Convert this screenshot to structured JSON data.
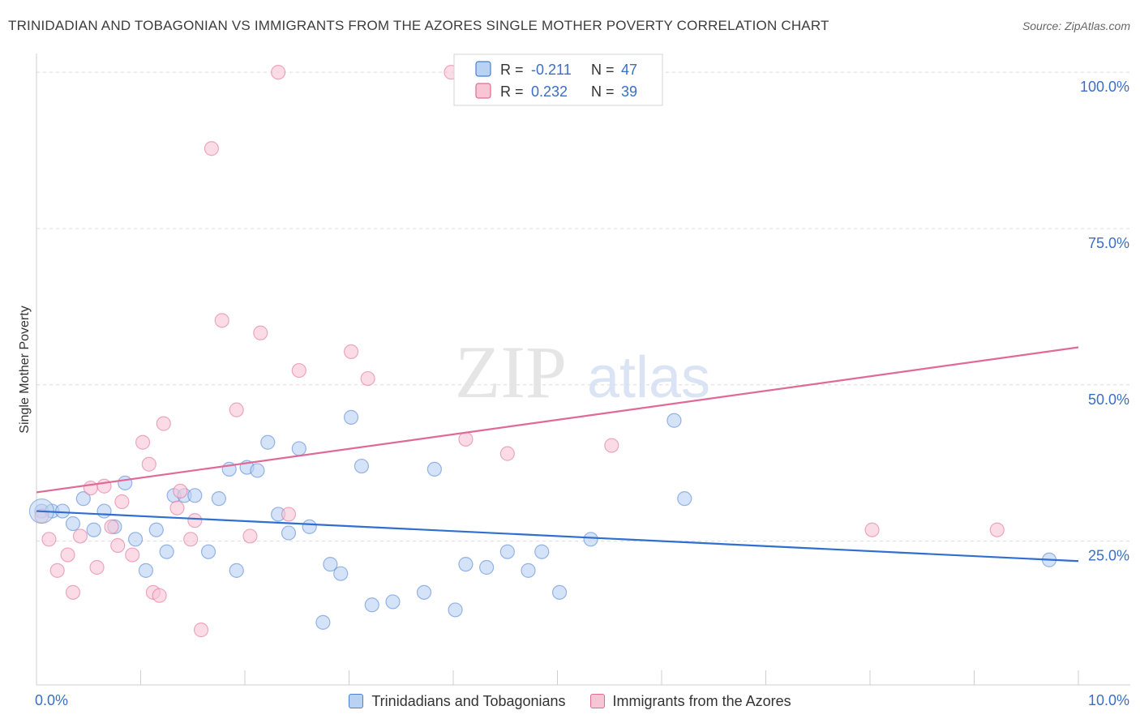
{
  "chart_data": {
    "type": "scatter",
    "title": "TRINIDADIAN AND TOBAGONIAN VS IMMIGRANTS FROM THE AZORES SINGLE MOTHER POVERTY CORRELATION CHART",
    "source": "Source: ZipAtlas.com",
    "ylabel": "Single Mother Poverty",
    "xlabel": "",
    "xlim": [
      0,
      10
    ],
    "ylim": [
      2,
      103
    ],
    "x_tick_labels": [
      {
        "value": 0,
        "label": "0.0%"
      },
      {
        "value": 10,
        "label": "10.0%"
      }
    ],
    "y_tick_labels": [
      {
        "value": 25,
        "label": "25.0%"
      },
      {
        "value": 50,
        "label": "50.0%"
      },
      {
        "value": 75,
        "label": "75.0%"
      },
      {
        "value": 100,
        "label": "100.0%"
      }
    ],
    "grid": true,
    "legend_position": "top-center",
    "watermark": "ZIPatlas",
    "series": [
      {
        "name": "Trinidadians and Tobagonians",
        "color": "#4a7fd1",
        "fill": "#b9d1f3",
        "r_label": "R =",
        "r_value": "-0.211",
        "n_label": "N =",
        "n_value": "47",
        "trend": {
          "x0": 0,
          "y0": 29.8,
          "x1": 10,
          "y1": 21.8
        },
        "points": [
          [
            0.05,
            29.8
          ],
          [
            0.15,
            29.8
          ],
          [
            0.25,
            29.8
          ],
          [
            0.35,
            27.8
          ],
          [
            0.45,
            31.8
          ],
          [
            0.55,
            26.8
          ],
          [
            0.65,
            29.8
          ],
          [
            0.75,
            27.3
          ],
          [
            0.85,
            34.3
          ],
          [
            0.95,
            25.3
          ],
          [
            1.05,
            20.3
          ],
          [
            1.15,
            26.8
          ],
          [
            1.25,
            23.3
          ],
          [
            1.32,
            32.3
          ],
          [
            1.42,
            32.3
          ],
          [
            1.52,
            32.3
          ],
          [
            1.65,
            23.3
          ],
          [
            1.75,
            31.8
          ],
          [
            1.85,
            36.5
          ],
          [
            1.92,
            20.3
          ],
          [
            2.02,
            36.8
          ],
          [
            2.12,
            36.3
          ],
          [
            2.22,
            40.8
          ],
          [
            2.32,
            29.3
          ],
          [
            2.42,
            26.3
          ],
          [
            2.52,
            39.8
          ],
          [
            2.62,
            27.3
          ],
          [
            2.75,
            12.0
          ],
          [
            2.82,
            21.3
          ],
          [
            2.92,
            19.8
          ],
          [
            3.02,
            44.8
          ],
          [
            3.12,
            37.0
          ],
          [
            3.22,
            14.8
          ],
          [
            3.42,
            15.3
          ],
          [
            3.72,
            16.8
          ],
          [
            3.82,
            36.5
          ],
          [
            4.02,
            14.0
          ],
          [
            4.12,
            21.3
          ],
          [
            4.32,
            20.8
          ],
          [
            4.52,
            23.3
          ],
          [
            4.72,
            20.3
          ],
          [
            4.85,
            23.3
          ],
          [
            5.02,
            16.8
          ],
          [
            5.32,
            25.3
          ],
          [
            6.12,
            44.3
          ],
          [
            6.22,
            31.8
          ],
          [
            9.72,
            22.0
          ]
        ]
      },
      {
        "name": "Immigrants from the Azores",
        "color": "#e06a96",
        "fill": "#f8c5d5",
        "r_label": "R =",
        "r_value": "0.232",
        "n_label": "N =",
        "n_value": "39",
        "trend": {
          "x0": 0,
          "y0": 32.8,
          "x1": 10,
          "y1": 56.0
        },
        "points": [
          [
            0.05,
            29.0
          ],
          [
            0.12,
            25.3
          ],
          [
            0.2,
            20.3
          ],
          [
            0.3,
            22.8
          ],
          [
            0.35,
            16.8
          ],
          [
            0.42,
            25.8
          ],
          [
            0.52,
            33.5
          ],
          [
            0.58,
            20.8
          ],
          [
            0.65,
            33.8
          ],
          [
            0.72,
            27.3
          ],
          [
            0.78,
            24.3
          ],
          [
            0.82,
            31.3
          ],
          [
            0.92,
            22.8
          ],
          [
            1.02,
            40.8
          ],
          [
            1.08,
            37.3
          ],
          [
            1.12,
            16.8
          ],
          [
            1.18,
            16.3
          ],
          [
            1.22,
            43.8
          ],
          [
            1.35,
            30.3
          ],
          [
            1.38,
            33.0
          ],
          [
            1.48,
            25.3
          ],
          [
            1.52,
            28.3
          ],
          [
            1.58,
            10.8
          ],
          [
            1.68,
            87.8
          ],
          [
            1.78,
            60.3
          ],
          [
            1.92,
            46.0
          ],
          [
            2.05,
            25.8
          ],
          [
            2.15,
            58.3
          ],
          [
            2.32,
            100.0
          ],
          [
            2.42,
            29.3
          ],
          [
            2.52,
            52.3
          ],
          [
            3.02,
            55.3
          ],
          [
            3.18,
            51.0
          ],
          [
            3.98,
            100.0
          ],
          [
            4.12,
            41.3
          ],
          [
            4.52,
            39.0
          ],
          [
            5.52,
            40.3
          ],
          [
            8.02,
            26.8
          ],
          [
            9.22,
            26.8
          ]
        ]
      }
    ]
  }
}
